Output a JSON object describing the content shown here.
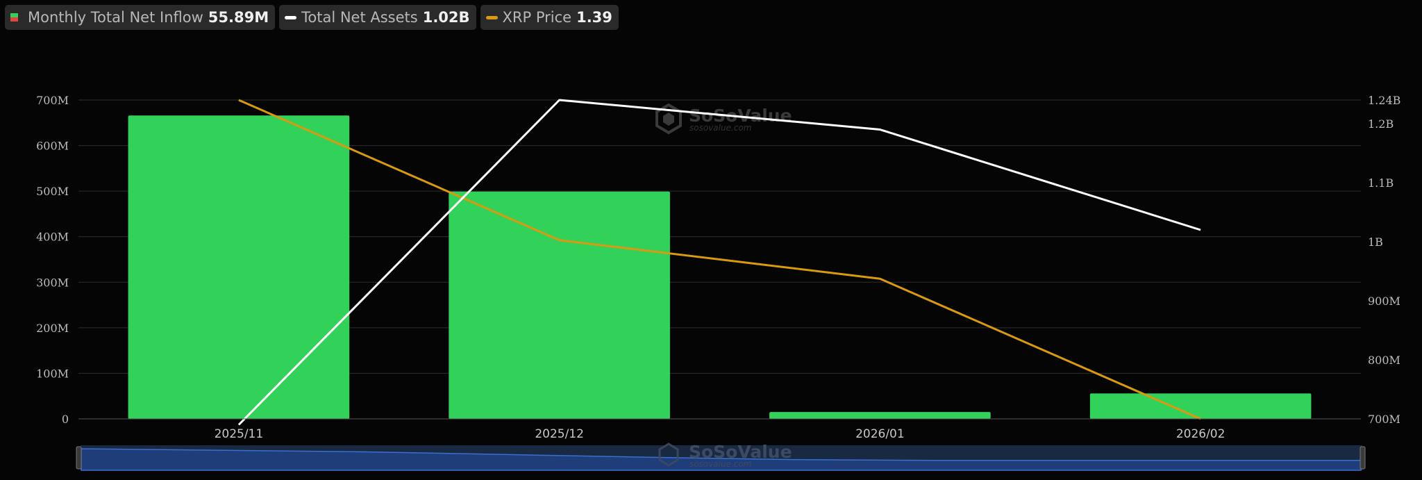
{
  "legend": {
    "inflow": {
      "label": "Monthly Total Net Inflow",
      "value": "55.89M",
      "color": "#32d25a"
    },
    "assets": {
      "label": "Total Net Assets",
      "value": "1.02B",
      "color": "#ffffff"
    },
    "price": {
      "label": "XRP Price",
      "value": "1.39",
      "color": "#d99a12"
    }
  },
  "watermark": {
    "name": "SoSoValue",
    "sub": "sosovalue.com"
  },
  "chart_data": {
    "type": "bar",
    "categories": [
      "2025/11",
      "2025/12",
      "2026/01",
      "2026/02"
    ],
    "series": [
      {
        "name": "Monthly Total Net Inflow",
        "type": "bar",
        "axis": "left",
        "color": "#32d25a",
        "values": [
          666,
          499,
          15,
          55.89
        ]
      },
      {
        "name": "Total Net Assets",
        "type": "line",
        "axis": "right",
        "color": "#ffffff",
        "values": [
          0.69,
          1.24,
          1.19,
          1.02
        ]
      },
      {
        "name": "XRP Price",
        "type": "line",
        "axis": "price",
        "color": "#d99a12",
        "values": [
          2.3,
          1.9,
          1.79,
          1.39
        ]
      }
    ],
    "y_left": {
      "ticks": [
        0,
        100,
        200,
        300,
        400,
        500,
        600,
        700
      ],
      "tick_labels": [
        "0",
        "100M",
        "200M",
        "300M",
        "400M",
        "500M",
        "600M",
        "700M"
      ],
      "ylim": [
        0,
        700
      ],
      "unit": "M"
    },
    "y_right": {
      "ticks": [
        0.7,
        0.8,
        0.9,
        1.0,
        1.1,
        1.2,
        1.24
      ],
      "tick_labels": [
        "700M",
        "800M",
        "900M",
        "1B",
        "1.1B",
        "1.2B",
        "1.24B"
      ],
      "ylim": [
        0.7,
        1.24
      ],
      "unit": "B"
    },
    "y_price": {
      "ylim": [
        1.39,
        2.3
      ],
      "shown": false
    },
    "grid": true,
    "legend_position": "top-left",
    "navigator": true
  }
}
